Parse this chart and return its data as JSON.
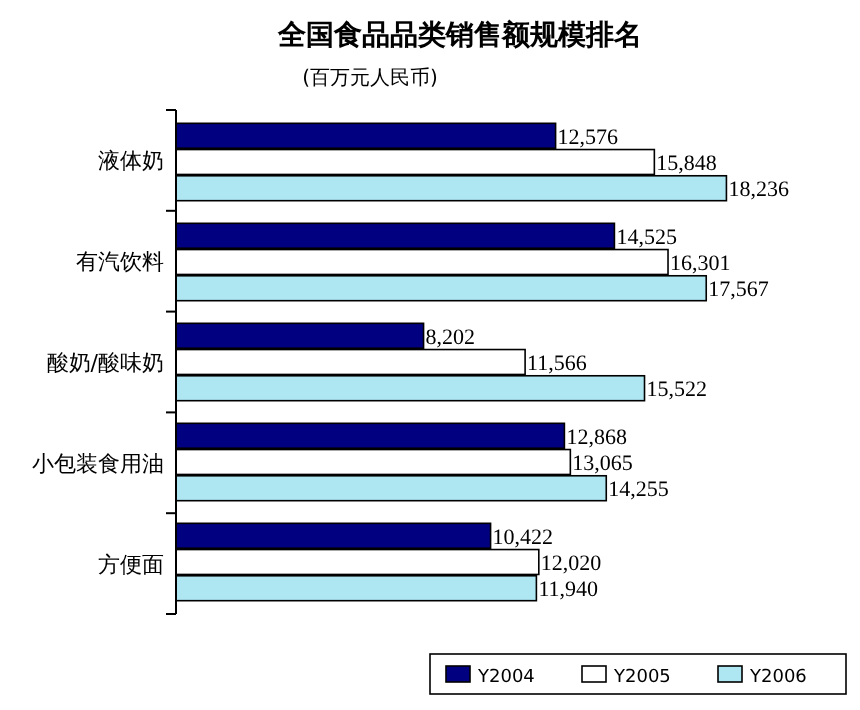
{
  "chart_data": {
    "type": "bar",
    "orientation": "horizontal",
    "title": "全国食品品类销售额规模排名",
    "subtitle": "(百万元人民币)",
    "categories": [
      "液体奶",
      "有汽饮料",
      "酸奶/酸味奶",
      "小包装食用油",
      "方便面"
    ],
    "series": [
      {
        "name": "Y2004",
        "color": "#000080",
        "values": [
          12576,
          14525,
          8202,
          12868,
          10422
        ],
        "value_labels": [
          "12,576",
          "14,525",
          "8,202",
          "12,868",
          "10,422"
        ]
      },
      {
        "name": "Y2005",
        "color": "#ffffff",
        "values": [
          15848,
          16301,
          11566,
          13065,
          12020
        ],
        "value_labels": [
          "15,848",
          "16,301",
          "11,566",
          "13,065",
          "12,020"
        ]
      },
      {
        "name": "Y2006",
        "color": "#aee6f2",
        "values": [
          18236,
          17567,
          15522,
          14255,
          11940
        ],
        "value_labels": [
          "18,236",
          "17,567",
          "15,522",
          "14,255",
          "11,940"
        ]
      }
    ],
    "legend": "bottom right"
  }
}
